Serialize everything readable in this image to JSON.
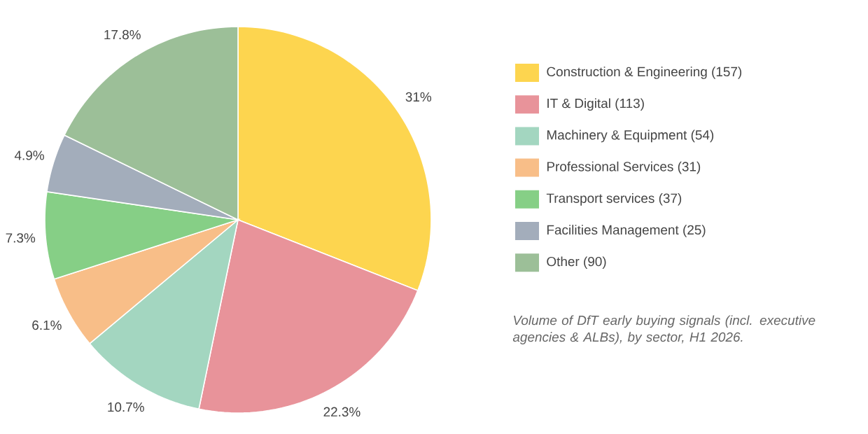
{
  "chart_data": {
    "type": "pie",
    "categories": [
      "Construction & Engineering (157)",
      "IT & Digital (113)",
      "Machinery & Equipment (54)",
      "Professional Services (31)",
      "Transport services (37)",
      "Facilities Management (25)",
      "Other (90)"
    ],
    "values": [
      31,
      22.3,
      10.7,
      6.1,
      7.3,
      4.9,
      17.8
    ],
    "value_labels": [
      "31%",
      "22.3%",
      "10.7%",
      "6.1%",
      "7.3%",
      "4.9%",
      "17.8%"
    ],
    "colors": [
      "#fdd54f",
      "#e8939a",
      "#a3d6c0",
      "#f8be88",
      "#86cf86",
      "#a3adbb",
      "#9cbf98"
    ],
    "legend": "right",
    "annotations": [
      "Volume of DfT early buying signals (incl. executive agencies & ALBs), by sector, H1 2026."
    ]
  }
}
